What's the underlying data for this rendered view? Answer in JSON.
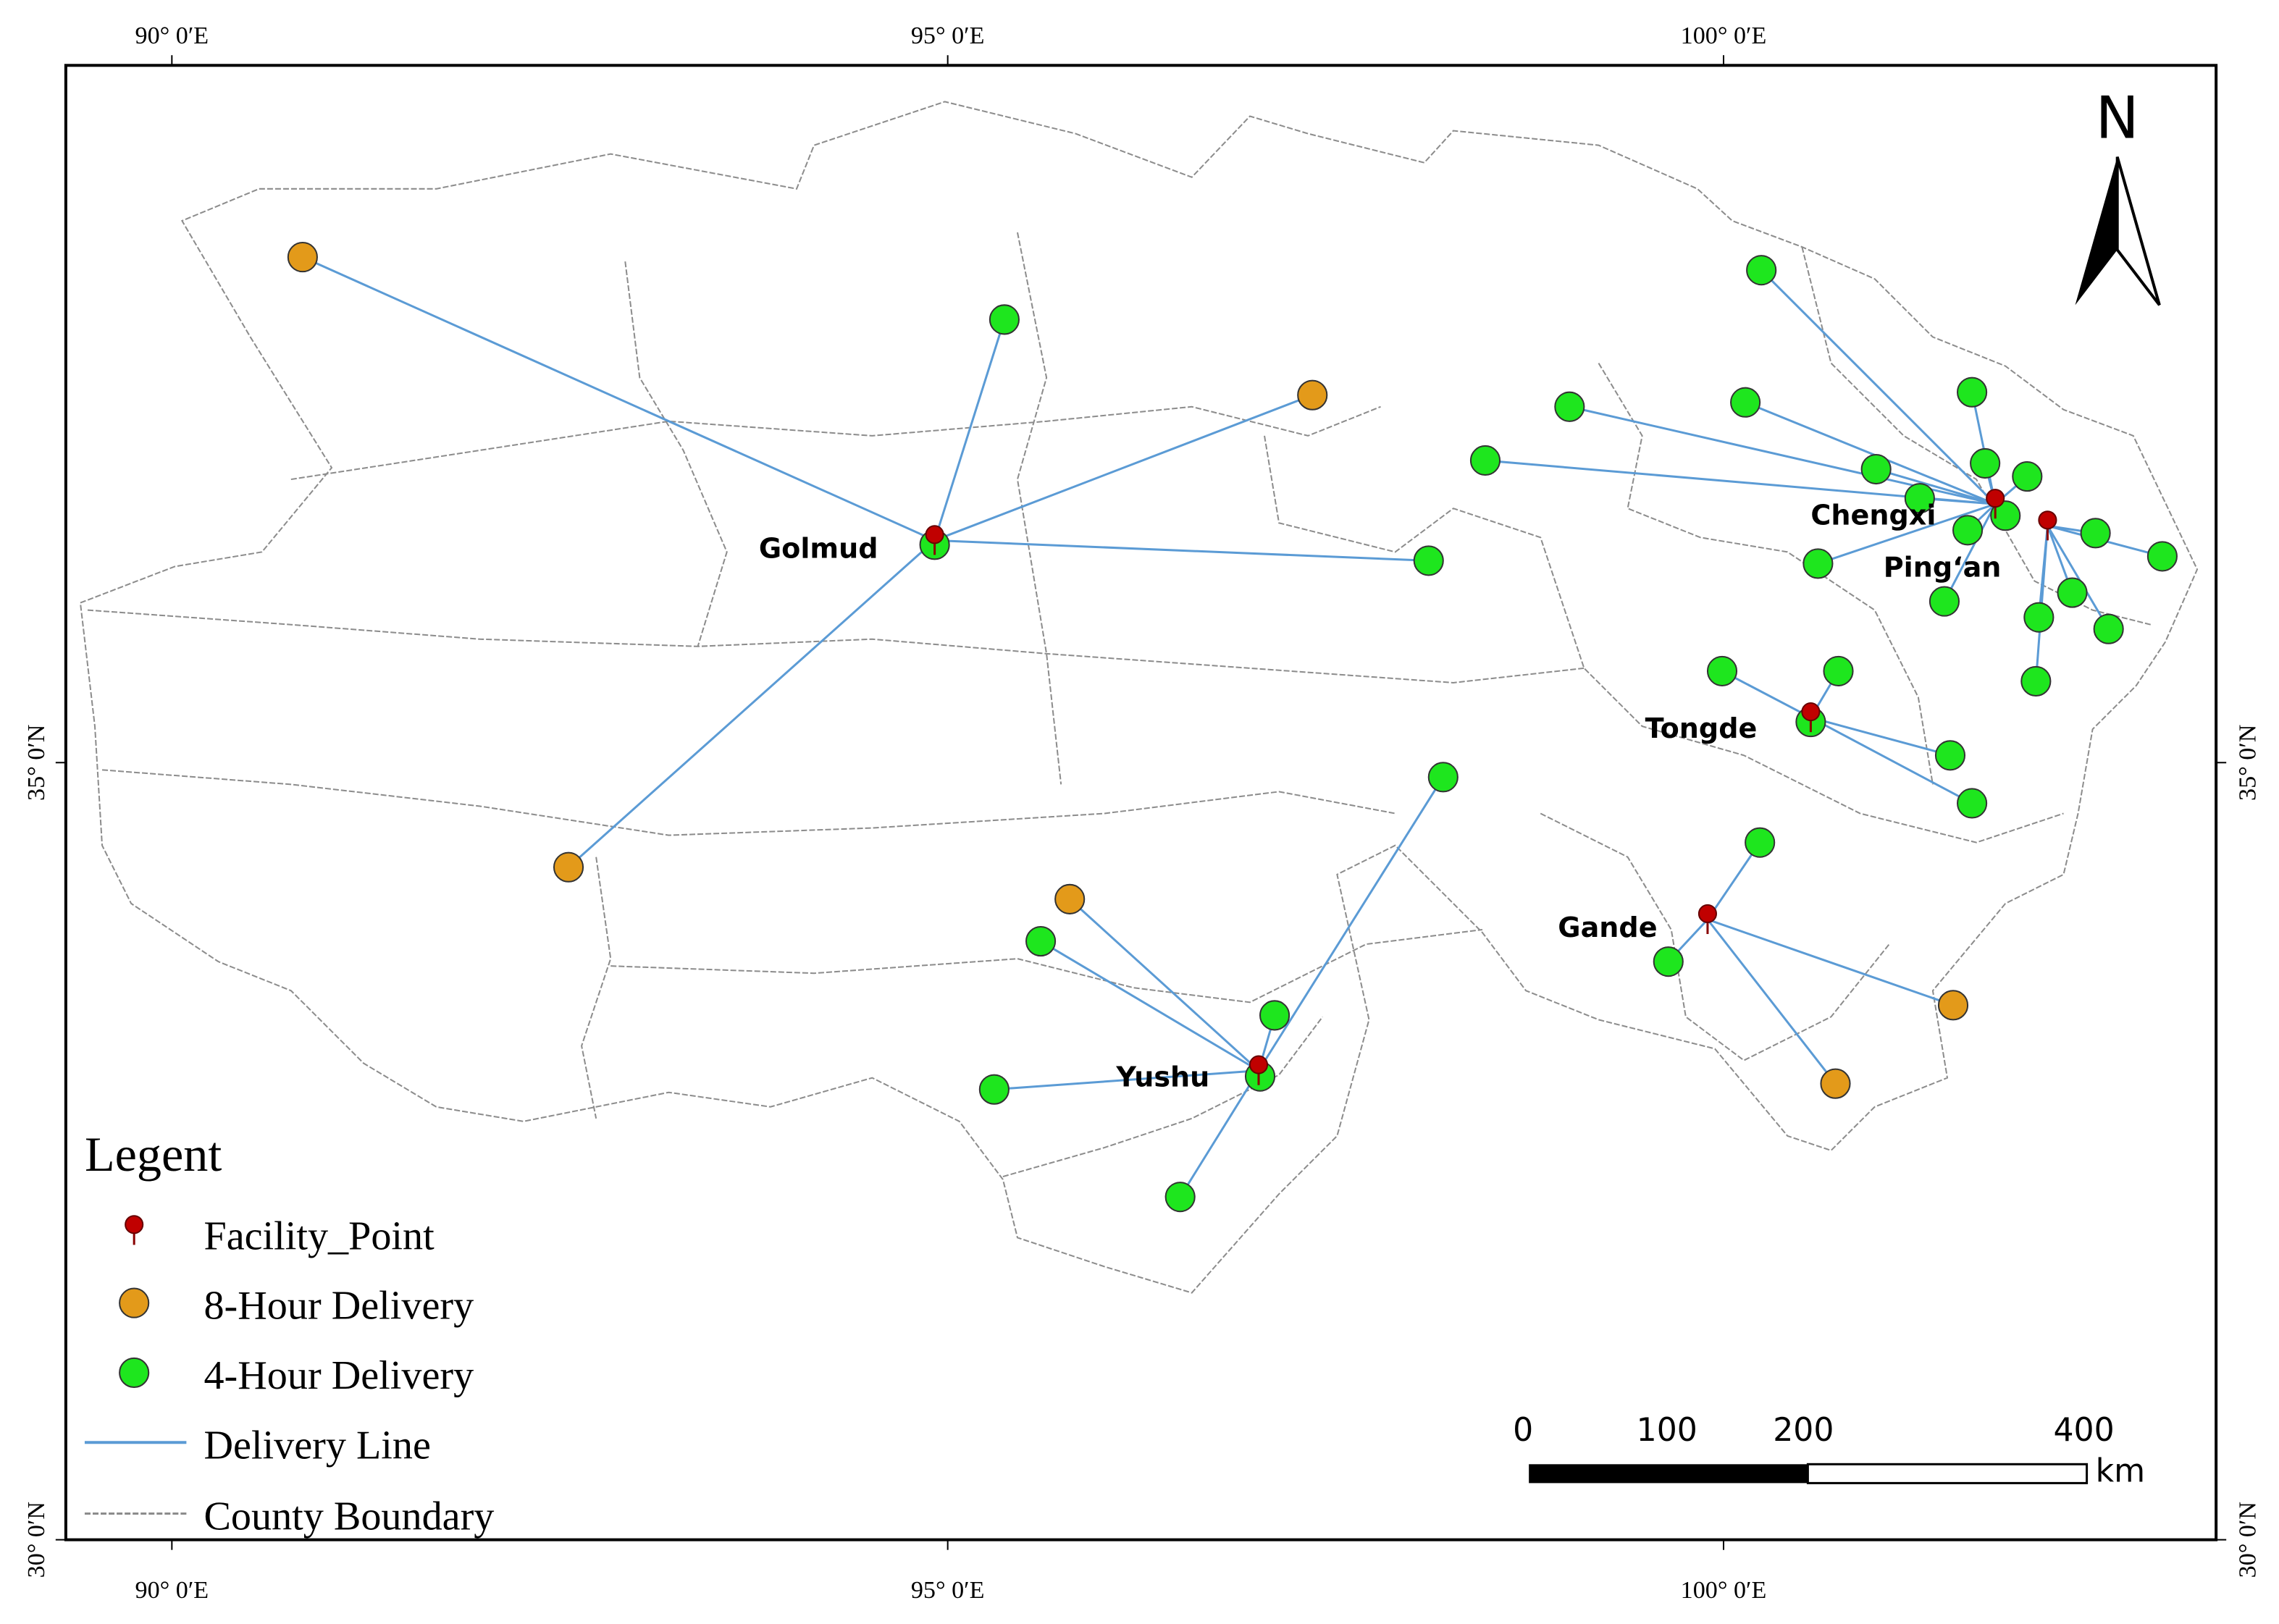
{
  "map": {
    "graticule": {
      "longitudes": [
        "90° 0′E",
        "95° 0′E",
        "100° 0′E"
      ],
      "latitudes": [
        "35° 0′N",
        "30° 0′N"
      ]
    },
    "north_label": "N",
    "cities": [
      "Golmud",
      "Chengxi",
      "Ping‘an",
      "Tongde",
      "Gande",
      "Yushu"
    ],
    "legend": {
      "title": "Legent",
      "items": [
        "Facility_Point",
        "8-Hour Delivery",
        "4-Hour Delivery",
        "Delivery Line",
        "County Boundary"
      ]
    },
    "scale_bar": {
      "labels": [
        "0",
        "100",
        "200",
        "400"
      ],
      "unit": "km"
    }
  }
}
